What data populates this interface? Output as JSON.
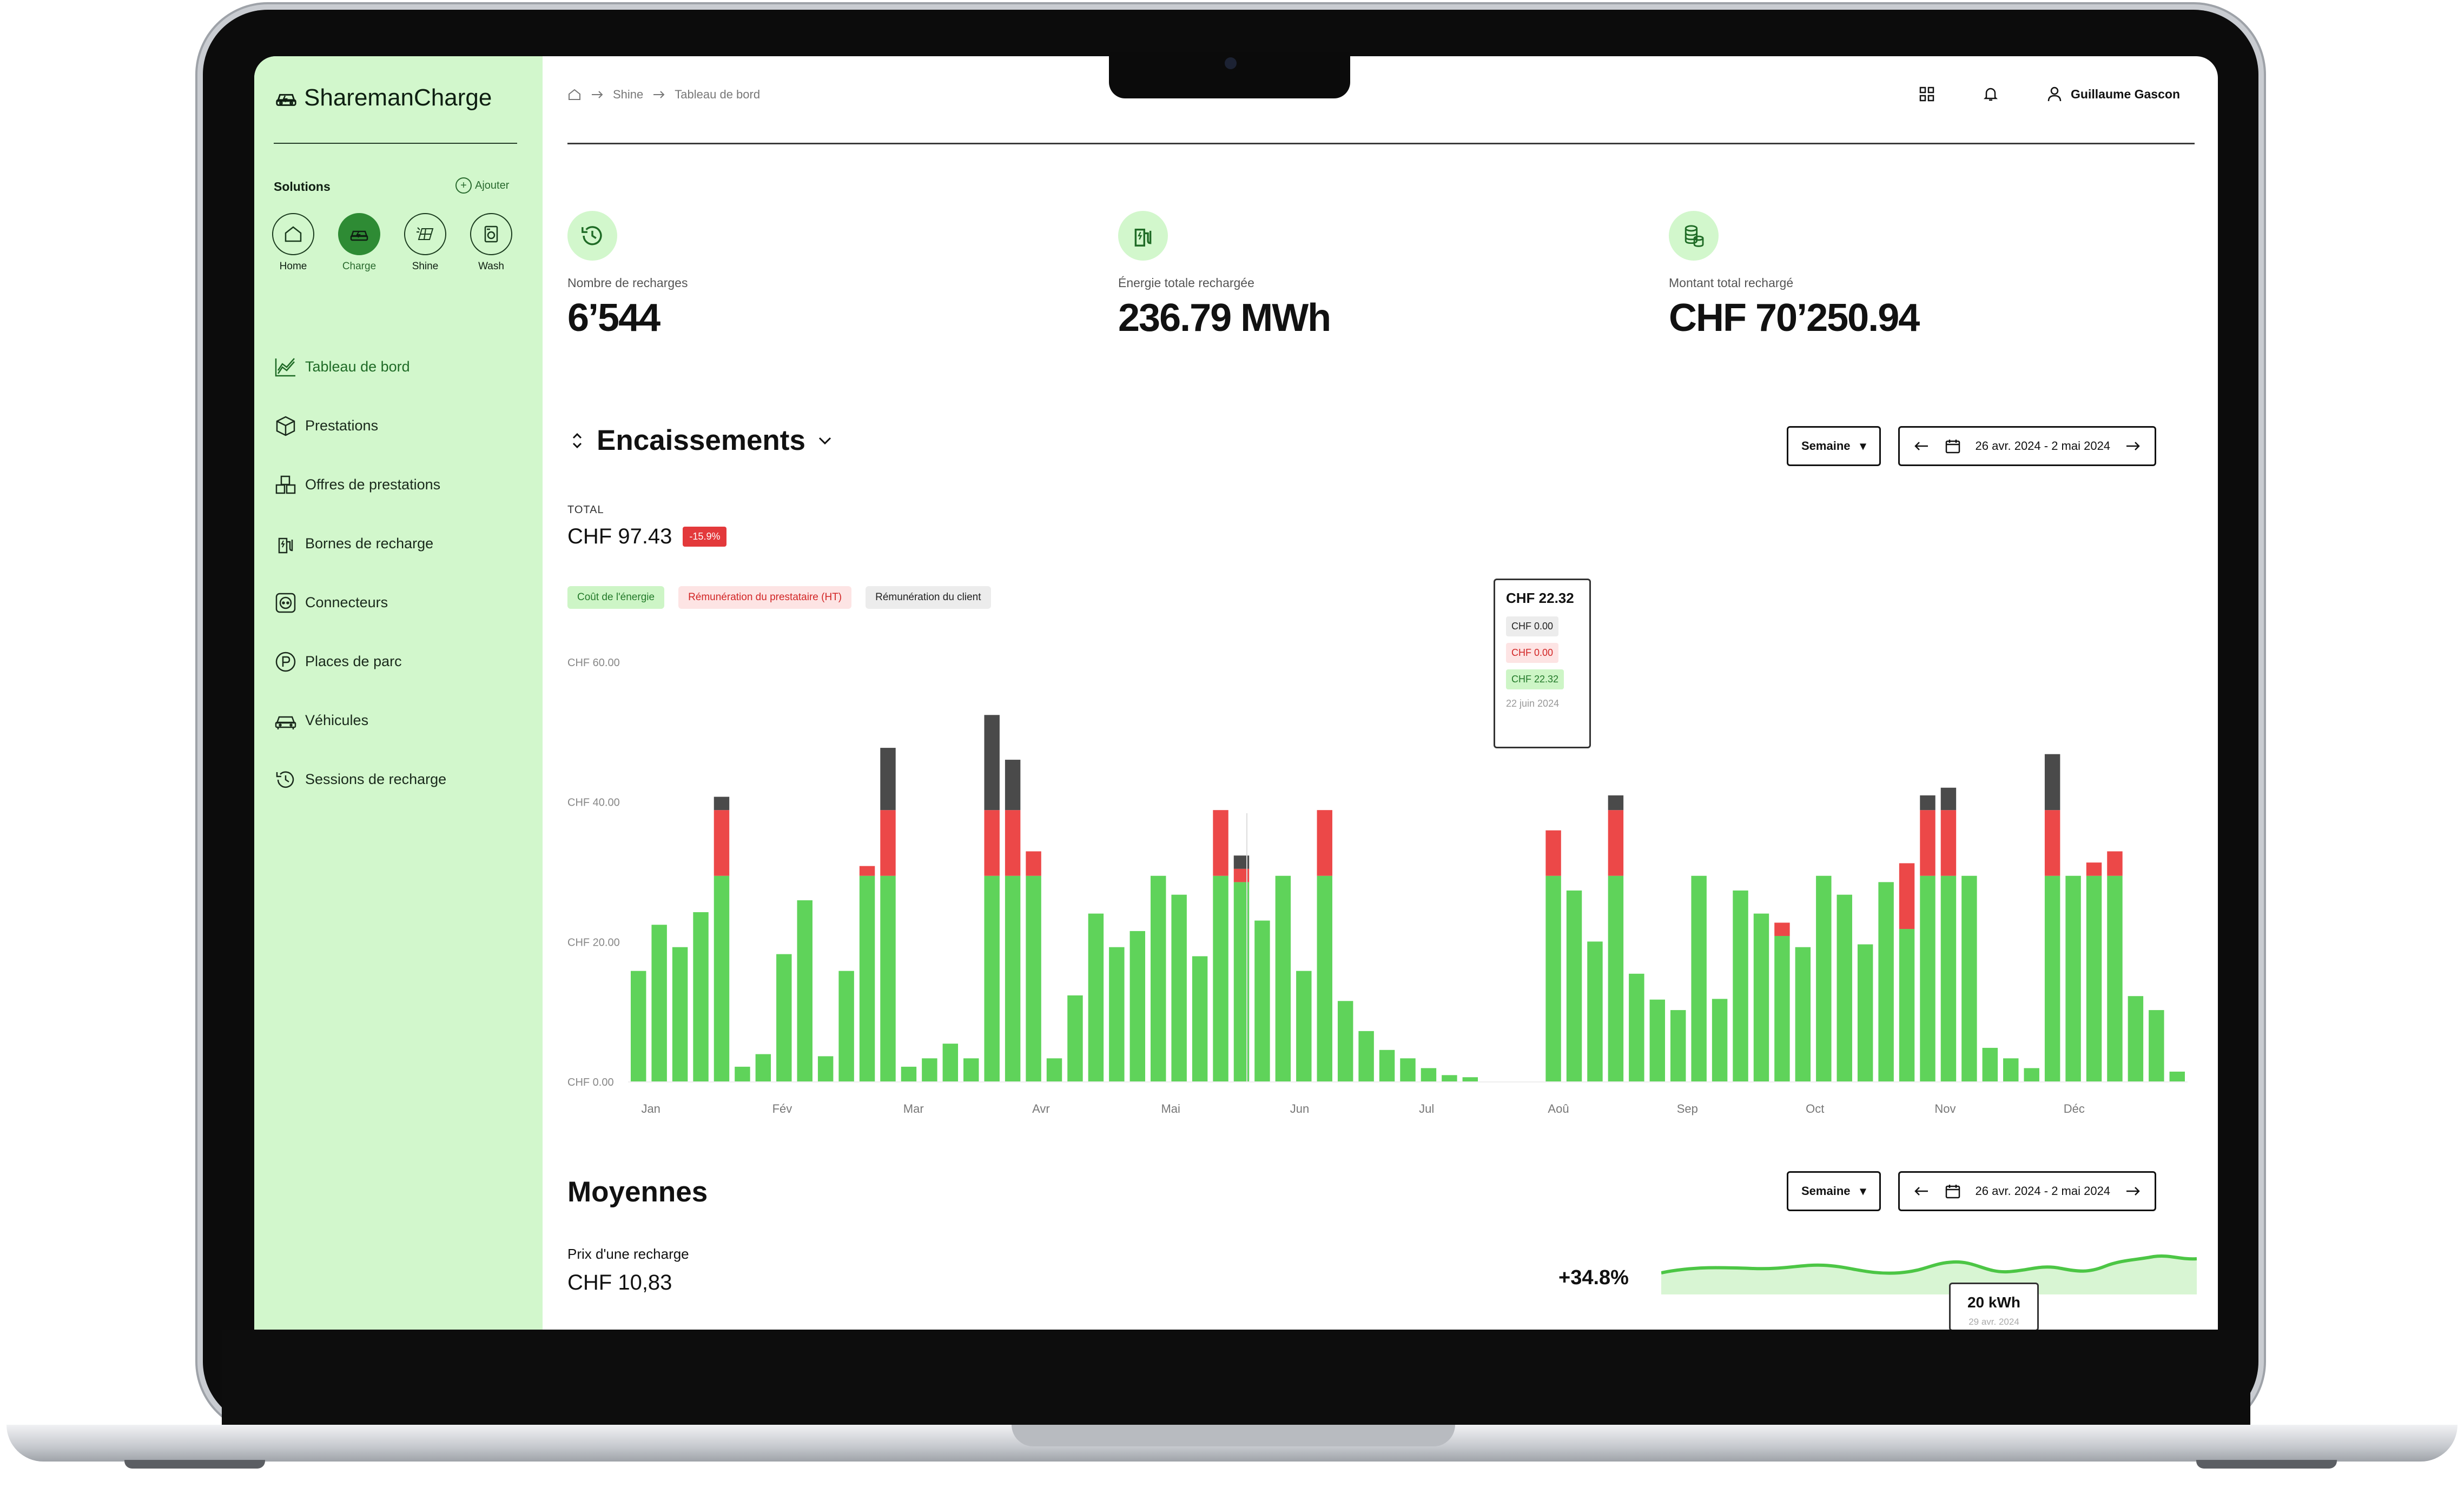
{
  "app": {
    "logo": "SharemanCharge"
  },
  "sidebar": {
    "solutions_title": "Solutions",
    "add_label": "Ajouter",
    "solutions": [
      {
        "label": "Home",
        "icon": "house-icon",
        "active": false
      },
      {
        "label": "Charge",
        "icon": "car-icon",
        "active": true
      },
      {
        "label": "Shine",
        "icon": "solar-panel-icon",
        "active": false
      },
      {
        "label": "Wash",
        "icon": "washing-machine-icon",
        "active": false
      }
    ],
    "items": [
      {
        "label": "Tableau de bord",
        "icon": "chart-area-icon",
        "active": true
      },
      {
        "label": "Prestations",
        "icon": "box-icon",
        "active": false
      },
      {
        "label": "Offres de prestations",
        "icon": "boxes-icon",
        "active": false
      },
      {
        "label": "Bornes de recharge",
        "icon": "charging-station-icon",
        "active": false
      },
      {
        "label": "Connecteurs",
        "icon": "plug-icon",
        "active": false
      },
      {
        "label": "Places de parc",
        "icon": "parking-icon",
        "active": false
      },
      {
        "label": "Véhicules",
        "icon": "vehicle-icon",
        "active": false
      },
      {
        "label": "Sessions de recharge",
        "icon": "history-icon",
        "active": false
      }
    ]
  },
  "header": {
    "breadcrumb": [
      "Shine",
      "Tableau de bord"
    ],
    "user_name": "Guillaume Gascon"
  },
  "kpis": [
    {
      "label": "Nombre de recharges",
      "value": "6’544",
      "icon": "history-icon"
    },
    {
      "label": "Énergie totale rechargée",
      "value": "236.79 MWh",
      "icon": "charging-station-icon"
    },
    {
      "label": "Montant total rechargé",
      "value": "CHF 70’250.94",
      "icon": "coins-icon"
    }
  ],
  "encaissements": {
    "title": "Encaissements",
    "period_select": "Semaine",
    "date_range": "26 avr. 2024 - 2 mai 2024",
    "total_label": "TOTAL",
    "total_value": "CHF 97.43",
    "change_badge": "-15.9%",
    "legend": [
      "Coût de l'énergie",
      "Rémunération du prestataire (HT)",
      "Rémunération du client"
    ],
    "tooltip": {
      "title": "CHF 22.32",
      "rows": [
        "CHF 0.00",
        "CHF 0.00",
        "CHF 22.32"
      ],
      "date": "22 juin 2024"
    }
  },
  "chart_data": {
    "type": "bar",
    "stacked": true,
    "y_tick_labels": [
      "CHF 0.00",
      "CHF 20.00",
      "CHF 40.00",
      "CHF 60.00"
    ],
    "ylim": [
      0,
      60
    ],
    "x_month_labels": [
      "Jan",
      "Fév",
      "Mar",
      "Avr",
      "Mai",
      "Jun",
      "Jul",
      "Aoû",
      "Sep",
      "Oct",
      "Nov",
      "Déc"
    ],
    "colors": {
      "energy": "#5fd35a",
      "provider": "#ec4848",
      "client": "#4a4a4a"
    },
    "series": [
      {
        "name": "Coût de l'énergie",
        "values": [
          15.8,
          22.4,
          19.2,
          24.2,
          29.4,
          2.1,
          3.9,
          18.2,
          25.9,
          3.6,
          15.8,
          29.4,
          29.4,
          2.1,
          3.3,
          5.4,
          3.3,
          29.4,
          29.4,
          29.4,
          3.3,
          12.3,
          24,
          19.2,
          21.5,
          29.4,
          26.7,
          17.9,
          29.4,
          28.5,
          23,
          29.4,
          15.8,
          29.4,
          11.5,
          7.2,
          4.5,
          3.3,
          1.9,
          0.9,
          0.6,
          0,
          0,
          0,
          29.4,
          27.3,
          20,
          29.4,
          15.4,
          11.7,
          10.2,
          29.4,
          11.8,
          27.3,
          24,
          20.8,
          19.2,
          29.4,
          26.7,
          19.6,
          28.5,
          21.8,
          29.4,
          29.4,
          29.4,
          4.8,
          3.3,
          1.9,
          29.4,
          29.4,
          29.4,
          29.4,
          12.2,
          10.2,
          1.4
        ]
      },
      {
        "name": "Rémunération du prestataire (HT)",
        "values": [
          0,
          0,
          0,
          0,
          9.4,
          0,
          0,
          0,
          0,
          0,
          0,
          1.4,
          9.4,
          0,
          0,
          0,
          0,
          9.4,
          9.4,
          3.5,
          0,
          0,
          0,
          0,
          0,
          0,
          0,
          0,
          9.4,
          1.9,
          0,
          0,
          0,
          9.4,
          0,
          0,
          0,
          0,
          0,
          0,
          0,
          0,
          0,
          0,
          6.5,
          0,
          0,
          9.4,
          0,
          0,
          0,
          0,
          0,
          0,
          0,
          1.9,
          0,
          0,
          0,
          0,
          0,
          9.4,
          9.4,
          9.4,
          0,
          0,
          0,
          0,
          9.4,
          0,
          1.9,
          3.5,
          0,
          0,
          0
        ]
      },
      {
        "name": "Rémunération du client",
        "values": [
          0,
          0,
          0,
          0,
          1.9,
          0,
          0,
          0,
          0,
          0,
          0,
          0,
          8.9,
          0,
          0,
          0,
          0,
          13.6,
          7.2,
          0,
          0,
          0,
          0,
          0,
          0,
          0,
          0,
          0,
          0,
          1.9,
          0,
          0,
          0,
          0,
          0,
          0,
          0,
          0,
          0,
          0,
          0,
          0,
          0,
          0,
          0,
          0,
          0,
          2.1,
          0,
          0,
          0,
          0,
          0,
          0,
          0,
          0,
          0,
          0,
          0,
          0,
          0,
          0,
          2.1,
          3.2,
          0,
          0,
          0,
          0,
          8,
          0,
          0,
          0,
          0,
          0,
          0
        ]
      }
    ]
  },
  "moyennes": {
    "title": "Moyennes",
    "period_select": "Semaine",
    "date_range": "26 avr. 2024 - 2 mai 2024",
    "metric_label": "Prix d'une recharge",
    "metric_value": "CHF 10,83",
    "change": "+34.8%",
    "tooltip_value": "20 kWh",
    "tooltip_date": "29 avr. 2024"
  }
}
